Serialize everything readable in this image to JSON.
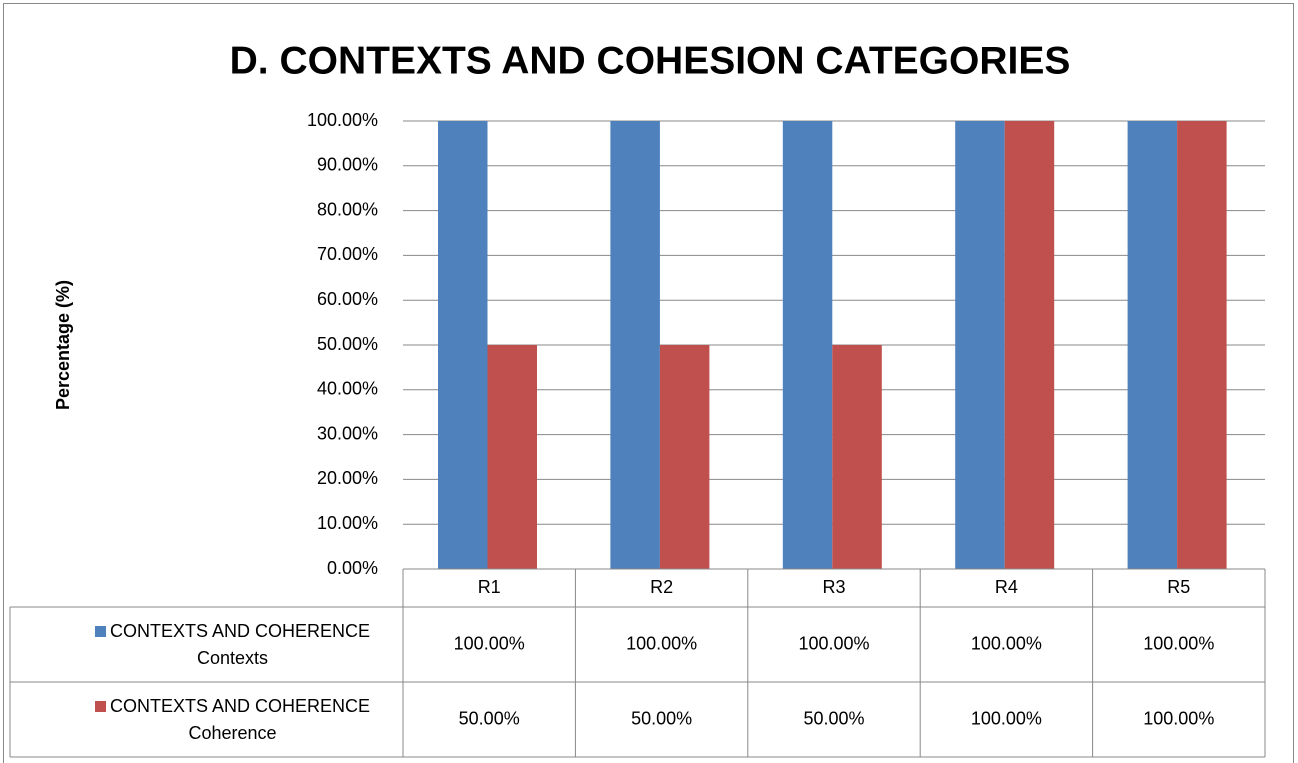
{
  "chart_data": {
    "type": "bar",
    "title": "D. CONTEXTS AND COHESION CATEGORIES",
    "y_label": "Percentage (%)",
    "categories": [
      "R1",
      "R2",
      "R3",
      "R4",
      "R5"
    ],
    "series": [
      {
        "name": "CONTEXTS AND COHERENCE Contexts",
        "color": "#4f81bd",
        "values": [
          100,
          100,
          100,
          100,
          100
        ],
        "value_labels": [
          "100.00%",
          "100.00%",
          "100.00%",
          "100.00%",
          "100.00%"
        ]
      },
      {
        "name": "CONTEXTS AND COHERENCE Coherence",
        "color": "#c0504d",
        "values": [
          50,
          50,
          50,
          100,
          100
        ],
        "value_labels": [
          "50.00%",
          "50.00%",
          "50.00%",
          "100.00%",
          "100.00%"
        ]
      }
    ],
    "ylim": [
      0,
      100
    ],
    "yticks": [
      {
        "value": 0,
        "label": "0.00%"
      },
      {
        "value": 10,
        "label": "10.00%"
      },
      {
        "value": 20,
        "label": "20.00%"
      },
      {
        "value": 30,
        "label": "30.00%"
      },
      {
        "value": 40,
        "label": "40.00%"
      },
      {
        "value": 50,
        "label": "50.00%"
      },
      {
        "value": 60,
        "label": "60.00%"
      },
      {
        "value": 70,
        "label": "70.00%"
      },
      {
        "value": 80,
        "label": "80.00%"
      },
      {
        "value": 90,
        "label": "90.00%"
      },
      {
        "value": 100,
        "label": "100.00%"
      }
    ],
    "grid": true
  }
}
